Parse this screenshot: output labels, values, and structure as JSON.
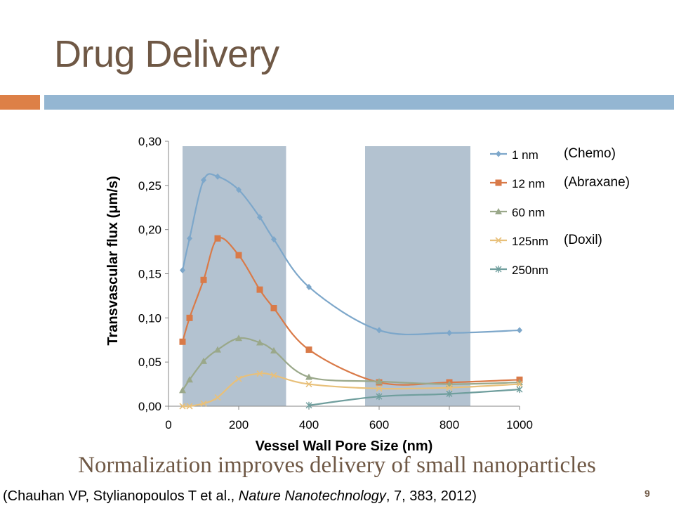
{
  "slide": {
    "title": "Drug Delivery",
    "caption": "Normalization improves delivery of small nanoparticles",
    "citation_pre": "(Chauhan VP, Stylianopoulos T et al., ",
    "citation_journal": "Nature Nanotechnology",
    "citation_post": ", 7, 383, 2012)",
    "page_number": "9",
    "colors": {
      "title": "#6f5845",
      "accent_orange": "#dd8047",
      "accent_blue": "#94b6d2"
    }
  },
  "chart_data": {
    "type": "line",
    "title": "",
    "xlabel": "Vessel Wall Pore Size (nm)",
    "ylabel": "Transvascular flux (μm/s)",
    "xlim": [
      0,
      1000
    ],
    "ylim": [
      0,
      0.3
    ],
    "x_ticks": [
      0,
      200,
      400,
      600,
      800,
      1000
    ],
    "y_ticks": [
      0,
      0.05,
      0.1,
      0.15,
      0.2,
      0.25,
      0.3
    ],
    "x_tick_labels": [
      "0",
      "200",
      "400",
      "600",
      "800",
      "1000"
    ],
    "y_tick_labels": [
      "0,00",
      "0,05",
      "0,10",
      "0,15",
      "0,20",
      "0,25",
      "0,30"
    ],
    "grid": false,
    "legend_position": "right",
    "shaded_regions": [
      {
        "x": [
          40,
          335
        ],
        "color": "#a6b7c8"
      },
      {
        "x": [
          560,
          860
        ],
        "color": "#a6b7c8"
      }
    ],
    "series": [
      {
        "name": "1 nm",
        "annotation": "(Chemo)",
        "color": "#7da7ca",
        "marker": "diamond",
        "points": [
          [
            40,
            0.154
          ],
          [
            60,
            0.19
          ],
          [
            100,
            0.256
          ],
          [
            140,
            0.26
          ],
          [
            200,
            0.245
          ],
          [
            260,
            0.214
          ],
          [
            300,
            0.189
          ],
          [
            400,
            0.135
          ],
          [
            600,
            0.086
          ],
          [
            800,
            0.083
          ],
          [
            1000,
            0.086
          ]
        ]
      },
      {
        "name": "12 nm",
        "annotation": "(Abraxane)",
        "color": "#d97a48",
        "marker": "square",
        "points": [
          [
            40,
            0.073
          ],
          [
            60,
            0.1
          ],
          [
            100,
            0.143
          ],
          [
            140,
            0.19
          ],
          [
            200,
            0.171
          ],
          [
            260,
            0.132
          ],
          [
            300,
            0.111
          ],
          [
            400,
            0.064
          ],
          [
            600,
            0.027
          ],
          [
            800,
            0.027
          ],
          [
            1000,
            0.03
          ]
        ]
      },
      {
        "name": "60 nm",
        "annotation": "",
        "color": "#9aa88a",
        "marker": "triangle",
        "points": [
          [
            40,
            0.018
          ],
          [
            60,
            0.03
          ],
          [
            100,
            0.051
          ],
          [
            140,
            0.064
          ],
          [
            200,
            0.077
          ],
          [
            260,
            0.072
          ],
          [
            300,
            0.063
          ],
          [
            400,
            0.033
          ],
          [
            600,
            0.028
          ],
          [
            800,
            0.025
          ],
          [
            1000,
            0.027
          ]
        ]
      },
      {
        "name": "125nm",
        "annotation": "(Doxil)",
        "color": "#e8c07a",
        "marker": "x",
        "points": [
          [
            40,
            0.0
          ],
          [
            60,
            0.0
          ],
          [
            100,
            0.003
          ],
          [
            140,
            0.01
          ],
          [
            200,
            0.031
          ],
          [
            260,
            0.037
          ],
          [
            300,
            0.035
          ],
          [
            400,
            0.025
          ],
          [
            600,
            0.02
          ],
          [
            800,
            0.021
          ],
          [
            1000,
            0.025
          ]
        ]
      },
      {
        "name": "250nm",
        "annotation": "",
        "color": "#6f9e9d",
        "marker": "star",
        "points": [
          [
            400,
            0.001
          ],
          [
            600,
            0.011
          ],
          [
            800,
            0.014
          ],
          [
            1000,
            0.019
          ]
        ]
      }
    ]
  }
}
